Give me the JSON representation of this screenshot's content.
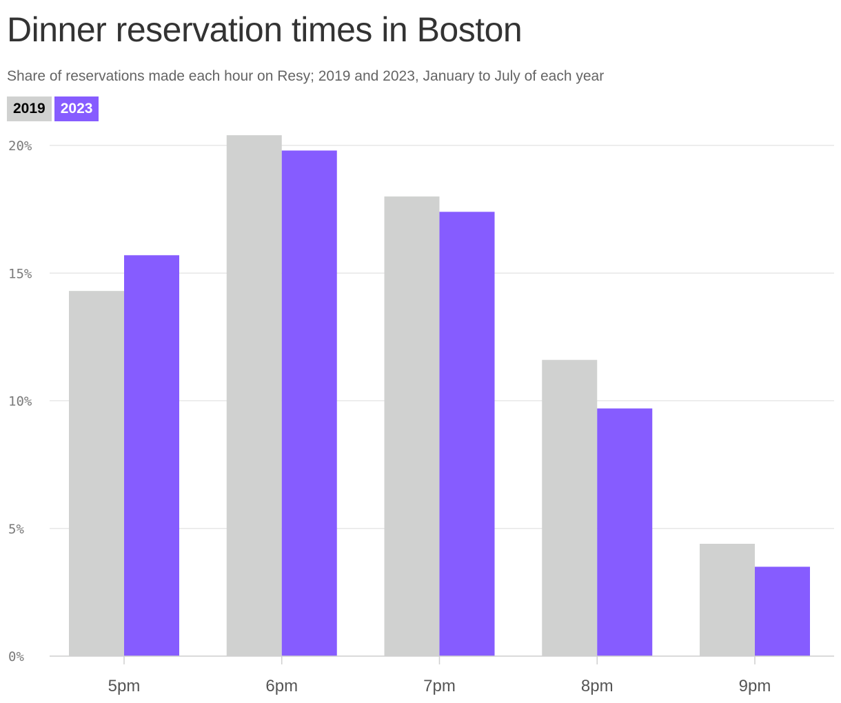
{
  "chart_data": {
    "type": "bar",
    "title": "Dinner reservation times in Boston",
    "subtitle": "Share of reservations made each hour on Resy; 2019 and 2023, January to July of each year",
    "categories": [
      "5pm",
      "6pm",
      "7pm",
      "8pm",
      "9pm"
    ],
    "series": [
      {
        "name": "2019",
        "color": "#d0d1d0",
        "text_color": "#000000",
        "values": [
          14.3,
          20.4,
          18.0,
          11.6,
          4.4
        ]
      },
      {
        "name": "2023",
        "color": "#865cff",
        "text_color": "#ffffff",
        "values": [
          15.7,
          19.8,
          17.4,
          9.7,
          3.5
        ]
      }
    ],
    "ylim": [
      0,
      20
    ],
    "yticks": [
      0,
      5,
      10,
      15,
      20
    ],
    "ytick_labels": [
      "0%",
      "5%",
      "10%",
      "15%",
      "20%"
    ],
    "grid": true,
    "legend_position": "top-left",
    "xlabel": "",
    "ylabel": ""
  }
}
